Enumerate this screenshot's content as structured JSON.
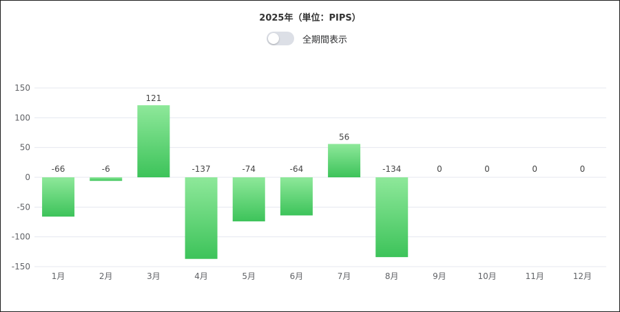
{
  "title": "2025年（単位：PIPS）",
  "toggle": {
    "label": "全期間表示",
    "on": false
  },
  "colors": {
    "bar_top": "#8ee89a",
    "bar_bottom": "#3dc35a",
    "grid": "#e4e7ef",
    "axis_text": "#606266"
  },
  "chart_data": {
    "type": "bar",
    "title": "2025年（単位：PIPS）",
    "categories": [
      "1月",
      "2月",
      "3月",
      "4月",
      "5月",
      "6月",
      "7月",
      "8月",
      "9月",
      "10月",
      "11月",
      "12月"
    ],
    "values": [
      -66,
      -6,
      121,
      -137,
      -74,
      -64,
      56,
      -134,
      0,
      0,
      0,
      0
    ],
    "data_labels": [
      "-66",
      "-6",
      "121",
      "-137",
      "-74",
      "-64",
      "56",
      "-134",
      "0",
      "0",
      "0",
      "0"
    ],
    "y_ticks": [
      150,
      100,
      50,
      0,
      -50,
      -100,
      -150
    ],
    "y_tick_labels": [
      "150",
      "100",
      "50",
      "0",
      "-50",
      "-100",
      "-150"
    ],
    "ylim": [
      -150,
      150
    ],
    "grid": true,
    "legend": "none"
  }
}
